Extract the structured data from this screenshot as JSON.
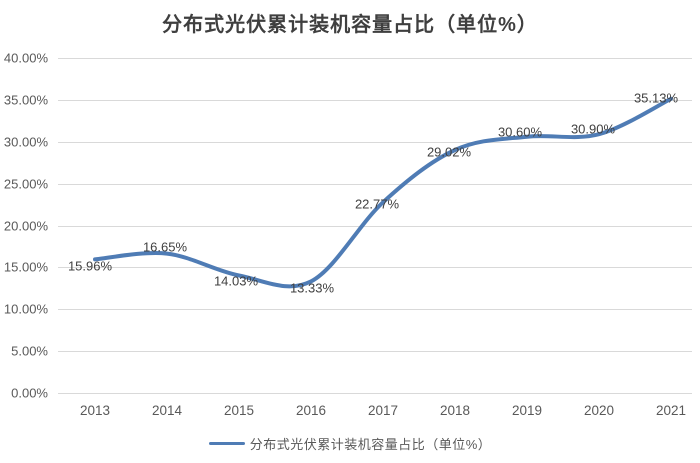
{
  "title": "分布式光伏累计装机容量占比（单位%）",
  "legend": {
    "label": "分布式光伏累计装机容量占比（单位%）"
  },
  "colors": {
    "line": "#4f7cb5",
    "grid": "#d9d9d9",
    "axis_text": "#595959",
    "data_label_text": "#3f3f3f",
    "title_text": "#3f3f3f",
    "background": "#ffffff"
  },
  "chart_data": {
    "type": "line",
    "smooth": true,
    "title": "分布式光伏累计装机容量占比（单位%）",
    "categories": [
      "2013",
      "2014",
      "2015",
      "2016",
      "2017",
      "2018",
      "2019",
      "2020",
      "2021"
    ],
    "series": [
      {
        "name": "分布式光伏累计装机容量占比（单位%）",
        "color": "#4f7cb5",
        "values": [
          15.96,
          16.65,
          14.03,
          13.33,
          22.77,
          29.02,
          30.6,
          30.9,
          35.13
        ],
        "data_labels": [
          "15.96%",
          "16.65%",
          "14.03%",
          "13.33%",
          "22.77%",
          "29.02%",
          "30.60%",
          "30.90%",
          "35.13%"
        ]
      }
    ],
    "y_ticks": [
      "40.00%",
      "35.00%",
      "30.00%",
      "25.00%",
      "20.00%",
      "15.00%",
      "10.00%",
      "5.00%",
      "0.00%"
    ],
    "ylim": [
      0,
      40
    ],
    "y_step": 5,
    "grid": true,
    "legend_position": "bottom"
  }
}
